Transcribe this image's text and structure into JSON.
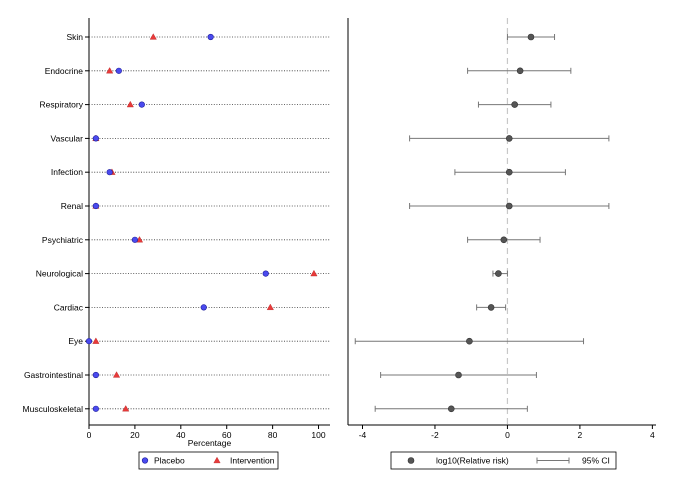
{
  "chart_data": [
    {
      "type": "scatter",
      "title": "",
      "xlabel": "Percentage",
      "ylabel": "",
      "xlim": [
        0,
        105
      ],
      "xticks": [
        0,
        20,
        40,
        60,
        80,
        100
      ],
      "categories": [
        "Skin",
        "Endocrine",
        "Respiratory",
        "Vascular",
        "Infection",
        "Renal",
        "Psychiatric",
        "Neurological",
        "Cardiac",
        "Eye",
        "Gastrointestinal",
        "Musculoskeletal"
      ],
      "series": [
        {
          "name": "Placebo",
          "marker": "circle",
          "color": "#4a4aee",
          "values": [
            53,
            13,
            23,
            3,
            9,
            3,
            20,
            77,
            50,
            0,
            3,
            3
          ]
        },
        {
          "name": "Intervention",
          "marker": "triangle",
          "color": "#e83a3a",
          "values": [
            28,
            9,
            18,
            3,
            10,
            3,
            22,
            98,
            79,
            3,
            12,
            16
          ]
        }
      ],
      "grid": "dotted horizontal",
      "legend": {
        "position": "bottom",
        "labels": [
          "Placebo",
          "Intervention"
        ]
      }
    },
    {
      "type": "scatter",
      "title": "",
      "xlabel": "",
      "ylabel": "",
      "xlim": [
        -4.4,
        4.1
      ],
      "xticks": [
        -4,
        -2,
        0,
        2,
        4
      ],
      "reference_line": 0,
      "categories": [
        "Skin",
        "Endocrine",
        "Respiratory",
        "Vascular",
        "Infection",
        "Renal",
        "Psychiatric",
        "Neurological",
        "Cardiac",
        "Eye",
        "Gastrointestinal",
        "Musculoskeletal"
      ],
      "series": [
        {
          "name": "log10(Relative risk)",
          "color": "#555555",
          "values": [
            0.65,
            0.35,
            0.2,
            0.05,
            0.05,
            0.05,
            -0.1,
            -0.25,
            -0.45,
            -1.05,
            -1.35,
            -1.55
          ],
          "ci_low": [
            0.0,
            -1.1,
            -0.8,
            -2.7,
            -1.45,
            -2.7,
            -1.1,
            -0.4,
            -0.85,
            -4.2,
            -3.5,
            -3.65
          ],
          "ci_high": [
            1.3,
            1.75,
            1.2,
            2.8,
            1.6,
            2.8,
            0.9,
            0.0,
            -0.05,
            2.1,
            0.8,
            0.55
          ]
        }
      ],
      "legend": {
        "position": "bottom",
        "labels": [
          "log10(Relative risk)",
          "95% CI"
        ]
      }
    }
  ]
}
